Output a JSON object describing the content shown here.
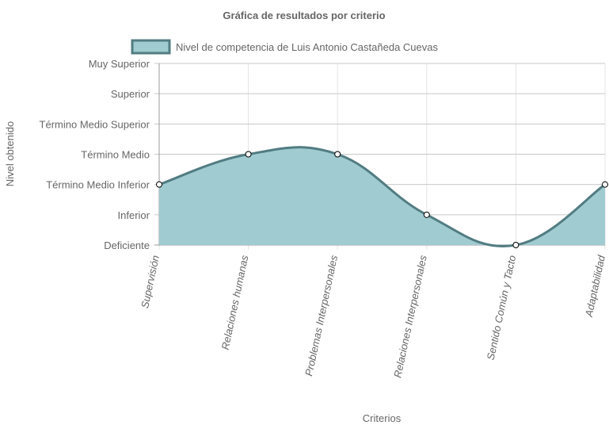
{
  "chart_data": {
    "type": "line",
    "title": "Gráfica de resultados por criterio",
    "xlabel": "Criterios",
    "ylabel": "Nivel obtenido",
    "categories": [
      "Supervisión",
      "Relaciones humanas",
      "Problemas Interpersonales",
      "Relaciones Interpersonales",
      "Sentido Común y Tacto",
      "Adaptabilidad"
    ],
    "y_levels": [
      "Deficiente",
      "Inferior",
      "Término Medio Inferior",
      "Término Medio",
      "Término Medio Superior",
      "Superior",
      "Muy Superior"
    ],
    "ylim": [
      0,
      6
    ],
    "series": [
      {
        "name": "Nivel de competencia de Luis Antonio Castañeda Cuevas",
        "values": [
          2,
          3,
          3,
          1,
          0,
          2
        ]
      }
    ],
    "fill": true,
    "smooth": true,
    "grid": true,
    "legend_position": "top",
    "colors": {
      "line": "#517c82",
      "fill": "#a0cbd0",
      "grid": "#c8c8c8",
      "point_fill": "#ffffff",
      "point_stroke": "#000000"
    }
  }
}
